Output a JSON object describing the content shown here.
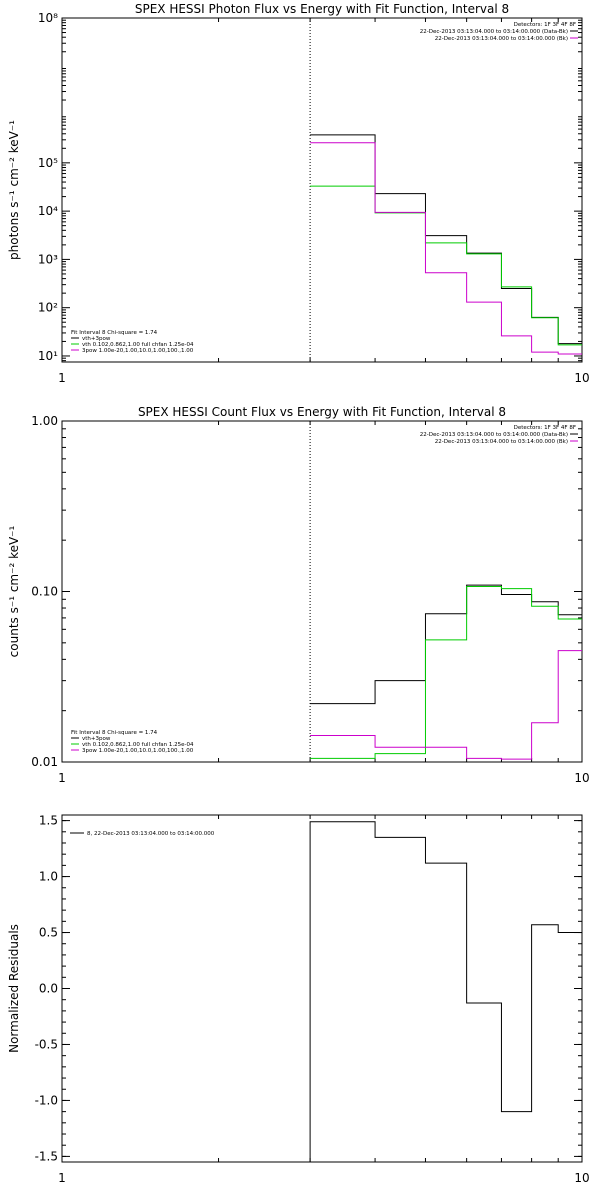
{
  "colors": {
    "black": "#000000",
    "green": "#00cc00",
    "magenta": "#cc00cc",
    "orange": "#ffa500"
  },
  "chart_data": [
    {
      "type": "line",
      "title": "SPEX HESSI Photon Flux vs Energy with Fit Function, Interval 8",
      "ylabel": "photons s⁻¹ cm⁻² keV⁻¹",
      "xlabel": "",
      "xscale": "log",
      "yscale": "log",
      "xlim": [
        1,
        10
      ],
      "ylim": [
        7.5,
        100000000
      ],
      "xticks": [
        1,
        10
      ],
      "yticks": [
        10,
        100,
        1000,
        10000,
        100000,
        100000000
      ],
      "yticklabels": [
        "10¹",
        "10²",
        "10³",
        "10⁴",
        "10⁵",
        "10⁸"
      ],
      "x_edges": [
        3,
        4,
        5,
        6,
        7,
        8,
        9,
        10
      ],
      "dotted_vline_x": 3,
      "series": [
        {
          "name": "vth+3pow",
          "color": "#000000",
          "values": [
            380000,
            23000,
            3100,
            1350,
            250,
            63,
            18
          ]
        },
        {
          "name": "vth 0.102,0.862,1.00  full chfan 1.25e-04",
          "color": "#00cc00",
          "values": [
            33000,
            9200,
            2200,
            1300,
            270,
            62,
            17
          ]
        },
        {
          "name": "3pow 1.00e-20,1.00,10.0,1.00,100.,1.00",
          "color": "#cc00cc",
          "values": [
            260000,
            9400,
            530,
            130,
            26,
            12,
            11
          ]
        }
      ],
      "legend_header": "Fit Interval  8    Chi-square = 1.74",
      "detectors_text": "Detectors: 1F 3F 4F 8F",
      "info_lines": [
        {
          "text": "22-Dec-2013 03:13:04.000 to 03:14:00.000 (Data-Bk)",
          "color": "#000000"
        },
        {
          "text": "22-Dec-2013 03:13:04.000 to 03:14:00.000 (Bk)",
          "color": "#cc00cc"
        }
      ]
    },
    {
      "type": "line",
      "title": "SPEX HESSI Count Flux vs Energy with Fit Function, Interval 8",
      "ylabel": "counts s⁻¹ cm⁻² keV⁻¹",
      "xlabel": "",
      "xscale": "log",
      "yscale": "log",
      "xlim": [
        1,
        10
      ],
      "ylim": [
        0.01,
        1.0
      ],
      "xticks": [
        1,
        10
      ],
      "yticks": [
        0.01,
        0.1,
        1.0
      ],
      "yticklabels": [
        "0.01",
        "0.10",
        "1.00"
      ],
      "x_edges": [
        3,
        4,
        5,
        6,
        7,
        8,
        9,
        10
      ],
      "dotted_vline_x": 3,
      "series": [
        {
          "name": "vth+3pow",
          "color": "#000000",
          "values": [
            0.022,
            0.03,
            0.074,
            0.109,
            0.096,
            0.087,
            0.073
          ]
        },
        {
          "name": "vth 0.102,0.862,1.00  full chfan 1.25e-04",
          "color": "#00cc00",
          "values": [
            0.0105,
            0.0112,
            0.052,
            0.107,
            0.104,
            0.082,
            0.069
          ]
        },
        {
          "name": "3pow 1.00e-20,1.00,10.0,1.00,100.,1.00",
          "color": "#cc00cc",
          "values": [
            0.0143,
            0.0122,
            0.0122,
            0.0105,
            0.0104,
            0.017,
            0.045
          ]
        }
      ],
      "legend_header": "Fit Interval  8    Chi-square = 1.74",
      "detectors_text": "Detectors: 1F 3F 4F 8F",
      "info_lines": [
        {
          "text": "22-Dec-2013 03:13:04.000 to 03:14:00.000 (Data-Bk)",
          "color": "#000000"
        },
        {
          "text": "22-Dec-2013 03:13:04.000 to 03:14:00.000 (Bk)",
          "color": "#cc00cc"
        }
      ]
    },
    {
      "type": "line",
      "title": "",
      "ylabel": "Normalized Residuals",
      "xlabel": "",
      "xscale": "log",
      "yscale": "linear",
      "xlim": [
        1,
        10
      ],
      "ylim": [
        -1.55,
        1.55
      ],
      "xticks": [
        1,
        10
      ],
      "yticks": [
        -1.5,
        -1.0,
        -0.5,
        0.0,
        0.5,
        1.0,
        1.5
      ],
      "yticklabels": [
        "-1.5",
        "-1.0",
        "-0.5",
        "0.0",
        "0.5",
        "1.0",
        "1.5"
      ],
      "x_edges": [
        3,
        4,
        5,
        6,
        7,
        8,
        9,
        10
      ],
      "series": [
        {
          "name": "8, 22-Dec-2013 03:13:04.000 to 03:14:00.000",
          "color": "#000000",
          "values": [
            1.49,
            1.35,
            1.12,
            -0.13,
            -1.1,
            0.57,
            0.5
          ]
        }
      ]
    }
  ]
}
